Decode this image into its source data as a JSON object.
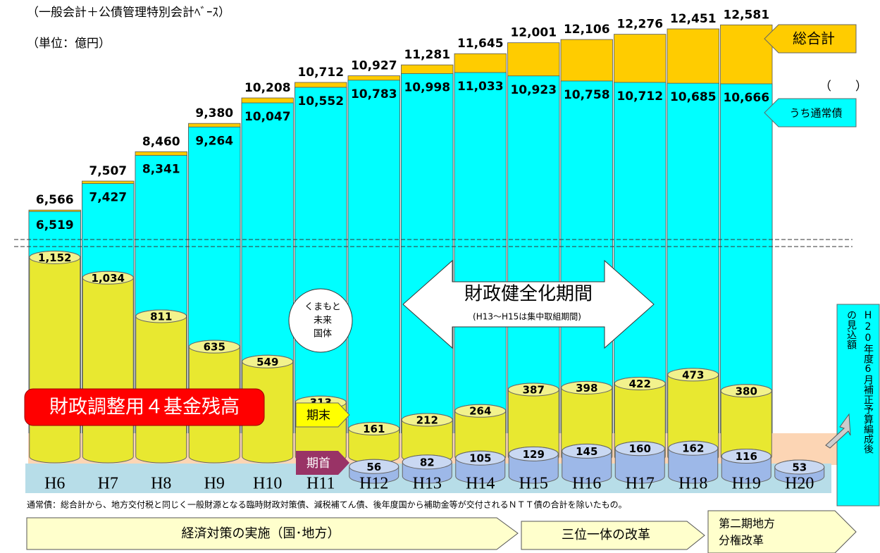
{
  "header": {
    "basis": "（一般会計＋公債管理特別会計ﾍﾞｰｽ）",
    "unit": "（単位：億円）"
  },
  "chart_data": {
    "type": "bar",
    "categories": [
      "H6",
      "H7",
      "H8",
      "H9",
      "H10",
      "H11",
      "H12",
      "H13",
      "H14",
      "H15",
      "H16",
      "H17",
      "H18",
      "H19",
      "H20"
    ],
    "series": [
      {
        "name": "総合計",
        "color": "#ffcc00",
        "values": [
          6566,
          7507,
          8460,
          9380,
          10208,
          10712,
          10927,
          11281,
          11645,
          12001,
          12106,
          12276,
          12451,
          12581,
          null
        ],
        "value_labels": [
          "6,566",
          "7,507",
          "8,460",
          "9,380",
          "10,208",
          "10,712",
          "10,927",
          "11,281",
          "11,645",
          "12,001",
          "12,106",
          "12,276",
          "12,451",
          "12,581",
          null
        ]
      },
      {
        "name": "うち通常債",
        "color": "#00ffff",
        "values": [
          6519,
          7427,
          8341,
          9264,
          10047,
          10552,
          10783,
          10998,
          11033,
          10923,
          10758,
          10712,
          10685,
          10666,
          null
        ],
        "value_labels": [
          "6,519",
          "7,427",
          "8,341",
          "9,264",
          "10,047",
          "10,552",
          "10,783",
          "10,998",
          "11,033",
          "10,923",
          "10,758",
          "10,712",
          "10,685",
          "10,666",
          null
        ]
      },
      {
        "name": "期末",
        "color": "#e8e830",
        "axis": "y2",
        "values": [
          1152,
          1034,
          811,
          635,
          549,
          313,
          161,
          212,
          264,
          387,
          398,
          422,
          473,
          380,
          null
        ],
        "value_labels": [
          "1,152",
          "1,034",
          "811",
          "635",
          "549",
          "313",
          "161",
          "212",
          "264",
          "387",
          "398",
          "422",
          "473",
          "380",
          null
        ]
      },
      {
        "name": "期首",
        "color": "#9db8e8",
        "axis": "y2",
        "values": [
          null,
          null,
          null,
          null,
          null,
          null,
          56,
          82,
          105,
          129,
          145,
          160,
          162,
          116,
          53
        ]
      }
    ],
    "ylim": [
      -1600,
      13000
    ],
    "y2lim": [
      0,
      2600
    ],
    "grid": false
  },
  "annotations": {
    "paren": "（　　）",
    "period": "財政健全化期間",
    "period_note": "(H13～H15は集中取組期間)",
    "event": [
      "くまもと",
      "未来",
      "国体"
    ],
    "funds": "財政調整用４基金残高",
    "note_lines": [
      "H20年度6月補正予算編成後",
      "の見込額"
    ],
    "footnote": "通常債：総合計から、地方交付税と同じく一般財源となる臨時財政対策債、減税補てん債、後年度国から補助金等が交付されるＮＴＴ債の合計を除いたもの。",
    "phases": [
      "経済対策の実施（国･地方）",
      "三位一体の改革",
      "第二期地方",
      "分権改革"
    ]
  }
}
